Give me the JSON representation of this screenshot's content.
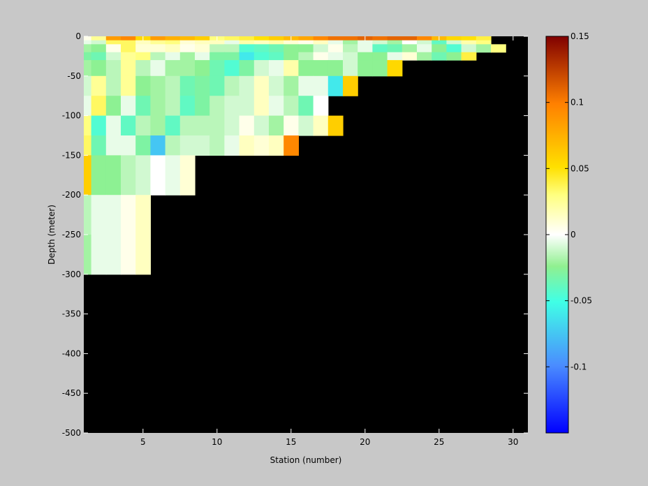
{
  "chart_data": {
    "type": "heatmap",
    "title": "",
    "xlabel": "Station (number)",
    "ylabel": "Depth (meter)",
    "x": {
      "start": 1,
      "stop": 31,
      "ticks": [
        5,
        10,
        15,
        20,
        25,
        30
      ],
      "tick_labels": [
        "5",
        "10",
        "15",
        "20",
        "25",
        "30"
      ]
    },
    "y": {
      "range": [
        -500,
        0
      ],
      "ticks": [
        0,
        -50,
        -100,
        -150,
        -200,
        -250,
        -300,
        -350,
        -400,
        -450,
        -500
      ],
      "tick_labels": [
        "0",
        "-50",
        "-100",
        "-150",
        "-200",
        "-250",
        "-300",
        "-350",
        "-400",
        "-450",
        "-500"
      ]
    },
    "stations": [
      1,
      2,
      3,
      4,
      5,
      6,
      7,
      8,
      9,
      10,
      11,
      12,
      13,
      14,
      15,
      16,
      17,
      18,
      19,
      20,
      21,
      22,
      23,
      24,
      25,
      26,
      27,
      28,
      29,
      30
    ],
    "depths": [
      0,
      -5,
      -10,
      -20,
      -30,
      -50,
      -75,
      -100,
      -125,
      -150,
      -200,
      -250,
      -300,
      -400,
      -500
    ],
    "values": [
      [
        0.005,
        0.025,
        0.085,
        0.095,
        0.055,
        0.085,
        0.075,
        0.07,
        0.06,
        0.03,
        0.035,
        0.04,
        0.05,
        0.06,
        0.07,
        0.08,
        0.095,
        0.105,
        0.105,
        0.11,
        0.105,
        0.11,
        0.11,
        0.095,
        0.07,
        0.055,
        0.05,
        0.04
      ],
      [
        -0.005,
        -0.01,
        0.035,
        0.035,
        0.015,
        0.025,
        0.03,
        0.01,
        0.015,
        0.015,
        -0.005,
        0.02,
        0.015,
        0.02,
        0.01,
        0.005,
        0.015,
        -0.005,
        -0.02,
        -0.005,
        -0.01,
        -0.02,
        0,
        -0.01,
        -0.04,
        -0.01,
        0.02,
        0.03
      ],
      [
        -0.02,
        -0.025,
        0.005,
        0.035,
        0.01,
        0.01,
        0.015,
        0.005,
        0.01,
        -0.015,
        -0.015,
        -0.045,
        -0.04,
        -0.035,
        -0.025,
        -0.025,
        -0.01,
        0.005,
        -0.015,
        -0.005,
        -0.04,
        -0.035,
        -0.02,
        -0.005,
        -0.025,
        -0.045,
        -0.01,
        -0.02,
        0.03
      ],
      [
        -0.03,
        -0.035,
        -0.01,
        0.025,
        0.03,
        -0.015,
        -0.005,
        -0.02,
        -0.005,
        -0.03,
        -0.03,
        -0.06,
        -0.045,
        -0.04,
        -0.025,
        -0.015,
        0.005,
        -0.005,
        -0.01,
        -0.025,
        -0.025,
        -0.005,
        0.01,
        -0.02,
        -0.035,
        -0.025,
        0.04
      ],
      [
        -0.02,
        -0.025,
        -0.015,
        0.025,
        -0.015,
        -0.005,
        -0.02,
        -0.02,
        -0.025,
        -0.035,
        -0.045,
        -0.03,
        -0.01,
        -0.005,
        0.02,
        -0.025,
        -0.025,
        -0.025,
        -0.01,
        -0.025,
        -0.025,
        0.055
      ],
      [
        -0.01,
        0.025,
        -0.015,
        0.025,
        -0.025,
        -0.02,
        -0.015,
        -0.035,
        -0.03,
        -0.035,
        -0.015,
        -0.01,
        0.015,
        -0.01,
        -0.02,
        -0.005,
        -0.005,
        -0.06,
        0.06
      ],
      [
        -0.005,
        0.035,
        -0.025,
        -0.005,
        -0.035,
        -0.02,
        -0.015,
        -0.04,
        -0.03,
        -0.015,
        -0.01,
        -0.01,
        0.015,
        -0.005,
        -0.015,
        -0.035,
        0
      ],
      [
        0.03,
        -0.045,
        -0.005,
        -0.04,
        -0.015,
        -0.02,
        -0.04,
        -0.015,
        -0.015,
        -0.015,
        -0.01,
        0.005,
        -0.01,
        -0.02,
        0.005,
        -0.01,
        0.015,
        0.06
      ],
      [
        0.035,
        -0.035,
        -0.005,
        -0.005,
        -0.03,
        -0.075,
        -0.015,
        -0.01,
        -0.01,
        -0.015,
        -0.005,
        0.015,
        0.01,
        0.015,
        0.095
      ],
      [
        0.06,
        -0.025,
        -0.025,
        -0.015,
        -0.01,
        0,
        -0.005,
        0.01
      ],
      [
        -0.015,
        -0.005,
        -0.005,
        0.005,
        0.015
      ],
      [
        -0.02,
        -0.005,
        -0.005,
        0.005,
        0.015
      ]
    ],
    "colorbar": {
      "range": [
        -0.15,
        0.15
      ],
      "ticks": [
        0.15,
        0.1,
        0.05,
        0,
        -0.05,
        -0.1
      ],
      "tick_labels": [
        "0.15",
        "0.1",
        "0.05",
        "0",
        "-0.05",
        "-0.1"
      ]
    },
    "colors": {
      "background": "#c8c8c8",
      "no_data": "#000000"
    }
  }
}
